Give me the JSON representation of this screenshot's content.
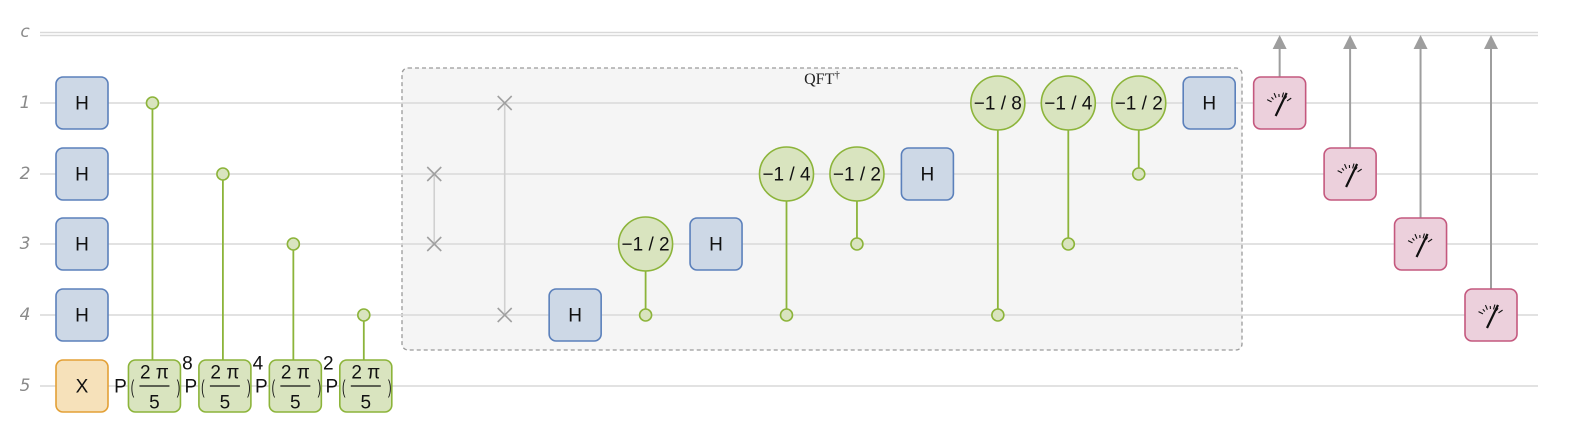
{
  "colors": {
    "wire": "#d9d9d9",
    "h_fill": "#cdd8e6",
    "h_stroke": "#5b80bb",
    "x_fill": "#f6e1ba",
    "x_stroke": "#e3a036",
    "phase_fill": "#d9e4bf",
    "phase_stroke": "#8cb43a",
    "measure_fill": "#ecd0dc",
    "measure_stroke": "#c4587e",
    "swap": "#a0a0a0",
    "classical_arrow": "#9e9e9e",
    "block_fill": "#f5f5f5",
    "block_stroke": "#9a9a9a"
  },
  "wires": [
    {
      "label": "c",
      "classical": true
    },
    {
      "label": "1"
    },
    {
      "label": "2"
    },
    {
      "label": "3"
    },
    {
      "label": "4"
    },
    {
      "label": "5"
    }
  ],
  "block": {
    "title": "QFT",
    "title_sup": "†"
  },
  "gates": [
    {
      "type": "box",
      "kind": "H",
      "label": "H",
      "wire": 1,
      "col": 0
    },
    {
      "type": "box",
      "kind": "H",
      "label": "H",
      "wire": 2,
      "col": 0
    },
    {
      "type": "box",
      "kind": "H",
      "label": "H",
      "wire": 3,
      "col": 0
    },
    {
      "type": "box",
      "kind": "H",
      "label": "H",
      "wire": 4,
      "col": 0
    },
    {
      "type": "box",
      "kind": "X",
      "label": "X",
      "wire": 5,
      "col": 0
    },
    {
      "type": "cpow",
      "control": 1,
      "target": 5,
      "col": 1,
      "prefix": "P",
      "num": "2 π",
      "den": "5",
      "power": "8"
    },
    {
      "type": "cpow",
      "control": 2,
      "target": 5,
      "col": 2,
      "prefix": "P",
      "num": "2 π",
      "den": "5",
      "power": "4"
    },
    {
      "type": "cpow",
      "control": 3,
      "target": 5,
      "col": 3,
      "prefix": "P",
      "num": "2 π",
      "den": "5",
      "power": "2"
    },
    {
      "type": "cpow",
      "control": 4,
      "target": 5,
      "col": 4,
      "prefix": "P",
      "num": "2 π",
      "den": "5",
      "power": ""
    },
    {
      "type": "swap",
      "a": 2,
      "b": 3,
      "col": 5
    },
    {
      "type": "swap",
      "a": 1,
      "b": 4,
      "col": 6
    },
    {
      "type": "box",
      "kind": "H",
      "label": "H",
      "wire": 4,
      "col": 7
    },
    {
      "type": "cphase",
      "label": "−1 / 2",
      "target": 3,
      "control": 4,
      "col": 8
    },
    {
      "type": "box",
      "kind": "H",
      "label": "H",
      "wire": 3,
      "col": 9
    },
    {
      "type": "cphase",
      "label": "−1 / 4",
      "target": 2,
      "control": 4,
      "col": 10
    },
    {
      "type": "cphase",
      "label": "−1 / 2",
      "target": 2,
      "control": 3,
      "col": 11
    },
    {
      "type": "box",
      "kind": "H",
      "label": "H",
      "wire": 2,
      "col": 12
    },
    {
      "type": "cphase",
      "label": "−1 / 8",
      "target": 1,
      "control": 4,
      "col": 13
    },
    {
      "type": "cphase",
      "label": "−1 / 4",
      "target": 1,
      "control": 3,
      "col": 14
    },
    {
      "type": "cphase",
      "label": "−1 / 2",
      "target": 1,
      "control": 2,
      "col": 15
    },
    {
      "type": "box",
      "kind": "H",
      "label": "H",
      "wire": 1,
      "col": 16
    },
    {
      "type": "measure",
      "wire": 1,
      "col": 17
    },
    {
      "type": "measure",
      "wire": 2,
      "col": 18
    },
    {
      "type": "measure",
      "wire": 3,
      "col": 19
    },
    {
      "type": "measure",
      "wire": 4,
      "col": 20
    }
  ]
}
